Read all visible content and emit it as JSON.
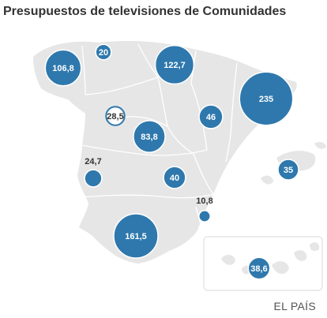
{
  "title": "Presupuestos de televisiones de Comunidades",
  "source": "EL PAÍS",
  "colors": {
    "bubble_fill": "#2e78ad",
    "bubble_stroke": "#ffffff",
    "land": "#e6e6e6",
    "borders": "#ffffff",
    "label_inside": "#ffffff",
    "label_outside": "#333333"
  },
  "chart_data": {
    "type": "bubble-map",
    "title": "Presupuestos de televisiones de Comunidades",
    "values": [
      {
        "id": "galicia",
        "label": "106,8",
        "value": 106.8
      },
      {
        "id": "asturias",
        "label": "20",
        "value": 20
      },
      {
        "id": "pais-vasco",
        "label": "122,7",
        "value": 122.7
      },
      {
        "id": "cataluna",
        "label": "235",
        "value": 235
      },
      {
        "id": "aragon",
        "label": "46",
        "value": 46
      },
      {
        "id": "castilla-y-leon",
        "label": "28,5",
        "value": 28.5,
        "style": "outline"
      },
      {
        "id": "madrid",
        "label": "83,8",
        "value": 83.8
      },
      {
        "id": "extremadura",
        "label": "24,7",
        "value": 24.7
      },
      {
        "id": "castilla-la-mancha",
        "label": "40",
        "value": 40
      },
      {
        "id": "baleares",
        "label": "35",
        "value": 35
      },
      {
        "id": "murcia",
        "label": "10,8",
        "value": 10.8
      },
      {
        "id": "andalucia",
        "label": "161,5",
        "value": 161.5
      },
      {
        "id": "canarias",
        "label": "38,6",
        "value": 38.6
      }
    ]
  }
}
